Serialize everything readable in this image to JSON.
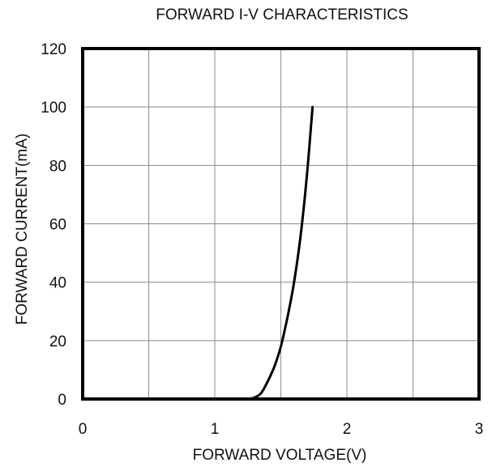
{
  "chart_data": {
    "type": "line",
    "title": "FORWARD I-V CHARACTERISTICS",
    "xlabel": "FORWARD VOLTAGE(V)",
    "ylabel": "FORWARD CURRENT(mA)",
    "xlim": [
      0,
      3
    ],
    "ylim": [
      0,
      120
    ],
    "xticks": [
      "0",
      "1",
      "2",
      "3"
    ],
    "yticks": [
      "0",
      "20",
      "40",
      "60",
      "80",
      "100",
      "120"
    ],
    "x_gridlines": [
      0.5,
      1,
      1.5,
      2,
      2.5
    ],
    "y_gridlines": [
      20,
      40,
      60,
      80,
      100
    ],
    "grid": true,
    "series": [
      {
        "color": "#000000",
        "x": [
          1.25,
          1.3,
          1.35,
          1.4,
          1.45,
          1.5,
          1.55,
          1.6,
          1.65,
          1.7,
          1.74
        ],
        "y": [
          0,
          0.5,
          2,
          6,
          11,
          18,
          28,
          40,
          56,
          78,
          100
        ]
      }
    ]
  }
}
